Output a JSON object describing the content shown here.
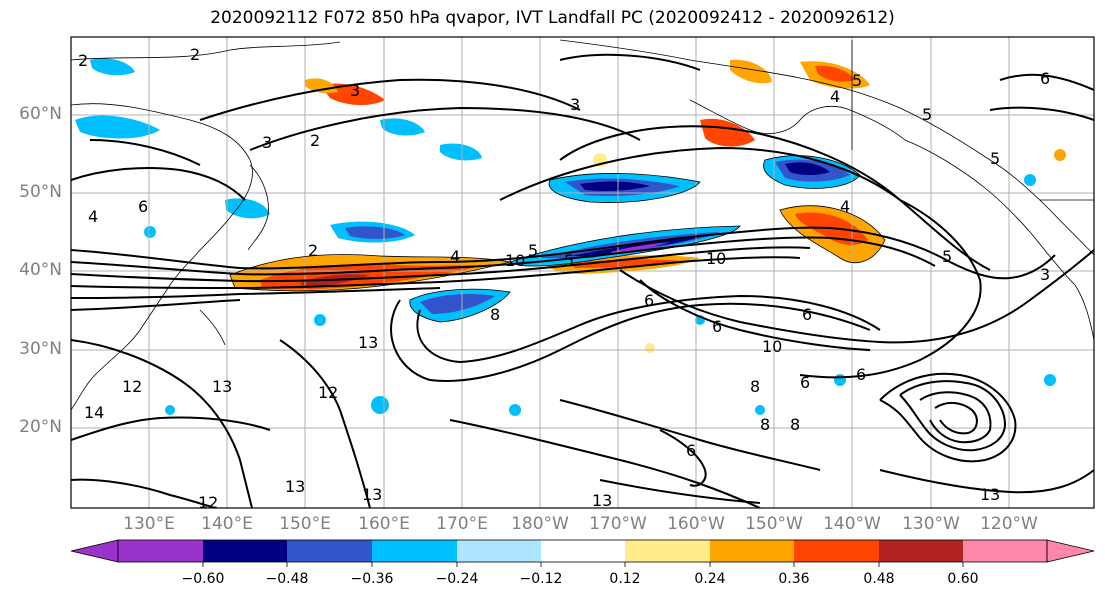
{
  "title": "2020092112 F072 850 hPa qvapor, IVT Landfall PC (2020092412 - 2020092612)",
  "map": {
    "lat_labels": [
      "60°N",
      "50°N",
      "40°N",
      "30°N",
      "20°N"
    ],
    "lon_labels": [
      "130°E",
      "140°E",
      "150°E",
      "160°E",
      "170°E",
      "180°W",
      "170°W",
      "160°W",
      "150°W",
      "140°W",
      "130°W",
      "120°W"
    ],
    "contour_labels": [
      {
        "text": "2"
      },
      {
        "text": "3"
      },
      {
        "text": "2"
      },
      {
        "text": "3"
      },
      {
        "text": "3"
      },
      {
        "text": "2"
      },
      {
        "text": "4"
      },
      {
        "text": "6"
      },
      {
        "text": "2"
      },
      {
        "text": "10"
      },
      {
        "text": "5"
      },
      {
        "text": "4"
      },
      {
        "text": "10"
      },
      {
        "text": "5"
      },
      {
        "text": "8"
      },
      {
        "text": "6"
      },
      {
        "text": "6"
      },
      {
        "text": "6"
      },
      {
        "text": "10"
      },
      {
        "text": "13"
      },
      {
        "text": "12"
      },
      {
        "text": "13"
      },
      {
        "text": "12"
      },
      {
        "text": "14"
      },
      {
        "text": "12"
      },
      {
        "text": "13"
      },
      {
        "text": "13"
      },
      {
        "text": "8"
      },
      {
        "text": "6"
      },
      {
        "text": "8"
      },
      {
        "text": "8"
      },
      {
        "text": "6"
      },
      {
        "text": "6"
      },
      {
        "text": "13"
      },
      {
        "text": "13"
      },
      {
        "text": "5"
      },
      {
        "text": "4"
      },
      {
        "text": "5"
      },
      {
        "text": "6"
      },
      {
        "text": "5"
      },
      {
        "text": "5"
      },
      {
        "text": "3"
      },
      {
        "text": "4"
      }
    ]
  },
  "colorbar": {
    "colors": [
      "#9933cc",
      "#000080",
      "#3355cc",
      "#00bfff",
      "#aee6ff",
      "#ffffff",
      "#ffec8b",
      "#ffa500",
      "#ff4500",
      "#b22222",
      "#ff88aa"
    ],
    "tick_labels": [
      "−0.60",
      "−0.48",
      "−0.36",
      "−0.24",
      "−0.12",
      "0.12",
      "0.24",
      "0.36",
      "0.48",
      "0.60"
    ]
  },
  "fill_colors": {
    "strong_negative": "#000080",
    "negative": "#3355cc",
    "weak_negative": "#00bfff",
    "faint_negative": "#aee6ff",
    "faint_positive": "#ffec8b",
    "positive": "#ffa500",
    "strong_positive": "#ff4500",
    "very_strong_positive": "#b22222"
  }
}
